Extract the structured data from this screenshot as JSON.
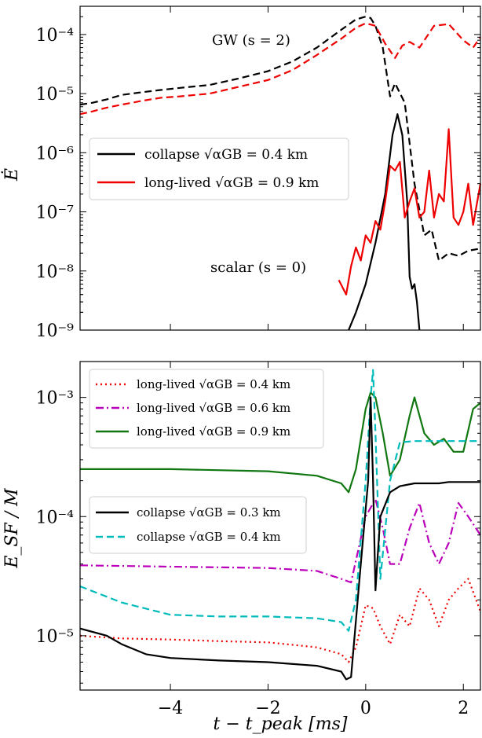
{
  "chart_data": [
    {
      "type": "line",
      "ylabel": "Ė",
      "yscale": "log",
      "ylim": [
        1e-09,
        0.0003
      ],
      "xlim": [
        -5.85,
        2.35
      ],
      "ytick_labels": [
        "10⁻⁹",
        "10⁻⁸",
        "10⁻⁷",
        "10⁻⁶",
        "10⁻⁵",
        "10⁻⁴"
      ],
      "annotations": [
        {
          "text": "GW (s = 2)",
          "x": -1.8,
          "y": 0.00012
        },
        {
          "text": "scalar (s = 0)",
          "x": -1.9,
          "y": 1.1e-08
        }
      ],
      "legend": {
        "placement": "center-left",
        "entries": [
          {
            "label": "collapse √αGB = 0.4 km",
            "color": "#000000",
            "style": "solid"
          },
          {
            "label": "long-lived √αGB = 0.9 km",
            "color": "#ee0000",
            "style": "solid"
          }
        ]
      },
      "series": [
        {
          "name": "GW collapse",
          "color": "#000000",
          "style": "dashed",
          "x": [
            -5.85,
            -5.6,
            -5.3,
            -5.0,
            -4.6,
            -4.2,
            -3.8,
            -3.2,
            -2.6,
            -2.0,
            -1.5,
            -1.0,
            -0.5,
            -0.2,
            0.0,
            0.1,
            0.2,
            0.35,
            0.5,
            0.6,
            0.8,
            1.0,
            1.2,
            1.35,
            1.5,
            1.7,
            1.9,
            2.1,
            2.35
          ],
          "y": [
            6.5e-06,
            7e-06,
            8e-06,
            9.5e-06,
            1.05e-05,
            1.15e-05,
            1.25e-05,
            1.4e-05,
            1.8e-05,
            2.4e-05,
            3.5e-05,
            6e-05,
            0.00012,
            0.00018,
            0.0002,
            0.00019,
            0.00014,
            6e-05,
            9e-06,
            1.5e-05,
            7e-06,
            3e-07,
            4e-08,
            5e-08,
            1.5e-08,
            2e-08,
            1.8e-08,
            2.2e-08,
            2.4e-08
          ]
        },
        {
          "name": "GW long-lived",
          "color": "#ee0000",
          "style": "dashed",
          "x": [
            -5.85,
            -5.6,
            -5.3,
            -5.0,
            -4.6,
            -4.2,
            -3.8,
            -3.2,
            -2.6,
            -2.0,
            -1.5,
            -1.0,
            -0.5,
            -0.2,
            0.0,
            0.2,
            0.4,
            0.6,
            0.75,
            0.9,
            1.1,
            1.4,
            1.7,
            2.0,
            2.2,
            2.35
          ],
          "y": [
            4.5e-06,
            5e-06,
            5.8e-06,
            6.5e-06,
            7.5e-06,
            8.5e-06,
            9e-06,
            1e-05,
            1.3e-05,
            1.7e-05,
            2.5e-05,
            4.5e-05,
            8.5e-05,
            0.00013,
            0.000155,
            0.00014,
            7e-05,
            4e-05,
            6.5e-05,
            7.5e-05,
            6e-05,
            0.00014,
            0.00015,
            8e-05,
            6e-05,
            9e-05
          ]
        },
        {
          "name": "scalar collapse",
          "color": "#000000",
          "style": "solid",
          "x": [
            -0.35,
            -0.2,
            0.0,
            0.2,
            0.4,
            0.55,
            0.65,
            0.75,
            0.85,
            0.9,
            0.95,
            1.0,
            1.05,
            1.1
          ],
          "y": [
            1e-09,
            2e-09,
            6e-09,
            3e-08,
            2e-07,
            2e-06,
            4.5e-06,
            2e-06,
            1.5e-07,
            8e-09,
            5e-09,
            6e-09,
            3e-09,
            1e-09
          ]
        },
        {
          "name": "scalar long-lived",
          "color": "#ee0000",
          "style": "solid",
          "x": [
            -0.55,
            -0.4,
            -0.3,
            -0.2,
            -0.1,
            0.0,
            0.1,
            0.2,
            0.3,
            0.4,
            0.5,
            0.6,
            0.7,
            0.8,
            0.9,
            1.0,
            1.1,
            1.2,
            1.3,
            1.4,
            1.5,
            1.6,
            1.7,
            1.8,
            1.9,
            2.0,
            2.1,
            2.2,
            2.35
          ],
          "y": [
            7e-09,
            4e-09,
            1.2e-08,
            2.5e-08,
            1.5e-08,
            4e-08,
            3e-08,
            7e-08,
            5e-08,
            1.5e-07,
            6e-07,
            5e-07,
            7e-07,
            8e-08,
            1.5e-07,
            2.5e-07,
            8e-08,
            1e-07,
            5e-07,
            8e-08,
            2e-07,
            1.5e-07,
            2.5e-06,
            8e-08,
            6e-08,
            1e-07,
            3e-07,
            6e-08,
            3e-07
          ]
        }
      ]
    },
    {
      "type": "line",
      "xlabel": "t − t_peak [ms]",
      "ylabel": "E_SF / M",
      "yscale": "log",
      "ylim": [
        3.5e-06,
        0.002
      ],
      "xlim": [
        -5.85,
        2.35
      ],
      "xtick_labels": [
        "−4",
        "−2",
        "0",
        "2"
      ],
      "ytick_labels": [
        "10⁻⁵",
        "10⁻⁴",
        "10⁻³"
      ],
      "legend_upper": {
        "placement": "top-left",
        "entries": [
          {
            "label": "long-lived √αGB = 0.4 km",
            "color": "#ee0000",
            "style": "dotted"
          },
          {
            "label": "long-lived √αGB = 0.6 km",
            "color": "#bb00bb",
            "style": "dashdot"
          },
          {
            "label": "long-lived √αGB = 0.9 km",
            "color": "#117711",
            "style": "solid"
          }
        ]
      },
      "legend_lower": {
        "placement": "center-left",
        "entries": [
          {
            "label": "collapse √αGB = 0.3 km",
            "color": "#000000",
            "style": "solid"
          },
          {
            "label": "collapse √αGB = 0.4 km",
            "color": "#00bbbb",
            "style": "dashed"
          }
        ]
      },
      "series": [
        {
          "name": "long-lived 0.9 km",
          "color": "#117711",
          "style": "solid",
          "x": [
            -5.85,
            -4.0,
            -2.0,
            -1.0,
            -0.5,
            -0.35,
            -0.2,
            0.0,
            0.1,
            0.2,
            0.35,
            0.5,
            0.7,
            0.9,
            1.0,
            1.2,
            1.4,
            1.6,
            1.8,
            2.0,
            2.2,
            2.35
          ],
          "y": [
            0.00025,
            0.00025,
            0.00024,
            0.00022,
            0.00019,
            0.00016,
            0.00025,
            0.0008,
            0.0011,
            0.001,
            0.0005,
            0.00022,
            0.0003,
            0.0007,
            0.001,
            0.0005,
            0.0004,
            0.00045,
            0.00035,
            0.00035,
            0.0008,
            0.0009
          ]
        },
        {
          "name": "long-lived 0.6 km",
          "color": "#bb00bb",
          "style": "dashdot",
          "x": [
            -5.85,
            -4.0,
            -2.0,
            -1.0,
            -0.5,
            -0.3,
            0.0,
            0.2,
            0.35,
            0.5,
            0.7,
            0.9,
            1.1,
            1.3,
            1.5,
            1.7,
            1.9,
            2.1,
            2.35
          ],
          "y": [
            3.9e-05,
            3.8e-05,
            3.7e-05,
            3.5e-05,
            3e-05,
            2.8e-05,
            0.0001,
            0.00014,
            8e-05,
            4e-05,
            4e-05,
            8e-05,
            0.00013,
            6e-05,
            4e-05,
            6e-05,
            0.00013,
            0.0001,
            7e-05
          ]
        },
        {
          "name": "long-lived 0.4 km",
          "color": "#ee0000",
          "style": "dotted",
          "x": [
            -5.85,
            -5.0,
            -4.0,
            -3.0,
            -2.0,
            -1.0,
            -0.5,
            -0.35,
            -0.2,
            0.0,
            0.15,
            0.3,
            0.5,
            0.7,
            0.9,
            1.1,
            1.3,
            1.5,
            1.7,
            1.9,
            2.1,
            2.35
          ],
          "y": [
            1e-05,
            9.5e-06,
            9.3e-06,
            9e-06,
            8.8e-06,
            8e-06,
            7e-06,
            6e-06,
            8e-06,
            1.8e-05,
            1.7e-05,
            1.2e-05,
            8.5e-06,
            1.5e-05,
            1.2e-05,
            2.5e-05,
            2e-05,
            1.2e-05,
            2e-05,
            2.5e-05,
            3e-05,
            1.6e-05
          ]
        },
        {
          "name": "collapse 0.4 km",
          "color": "#00bbbb",
          "style": "dashed",
          "x": [
            -5.85,
            -5.0,
            -4.0,
            -3.0,
            -2.0,
            -1.0,
            -0.5,
            -0.35,
            -0.2,
            0.0,
            0.1,
            0.15,
            0.2,
            0.3,
            0.5,
            0.7,
            1.0,
            1.5,
            2.0,
            2.35
          ],
          "y": [
            2.6e-05,
            1.9e-05,
            1.5e-05,
            1.45e-05,
            1.45e-05,
            1.4e-05,
            1.3e-05,
            1.1e-05,
            2e-05,
            0.0002,
            0.001,
            0.0017,
            0.0005,
            3e-05,
            0.0002,
            0.00042,
            0.00043,
            0.00043,
            0.00043,
            0.00043
          ]
        },
        {
          "name": "collapse 0.3 km",
          "color": "#000000",
          "style": "solid",
          "x": [
            -5.85,
            -5.3,
            -5.0,
            -4.5,
            -4.0,
            -3.0,
            -2.0,
            -1.0,
            -0.5,
            -0.4,
            -0.3,
            -0.1,
            0.05,
            0.1,
            0.15,
            0.2,
            0.25,
            0.3,
            0.5,
            0.7,
            1.0,
            1.5,
            1.7,
            2.0,
            2.35
          ],
          "y": [
            1.15e-05,
            1e-05,
            8.5e-06,
            7e-06,
            6.5e-06,
            6.2e-06,
            6e-06,
            5.6e-06,
            5e-06,
            4.3e-06,
            4.5e-06,
            4e-05,
            0.0002,
            0.001,
            0.0002,
            2.4e-05,
            5e-05,
            0.0001,
            0.00016,
            0.00018,
            0.00019,
            0.00019,
            0.000195,
            0.000195,
            0.000195
          ]
        }
      ]
    }
  ]
}
